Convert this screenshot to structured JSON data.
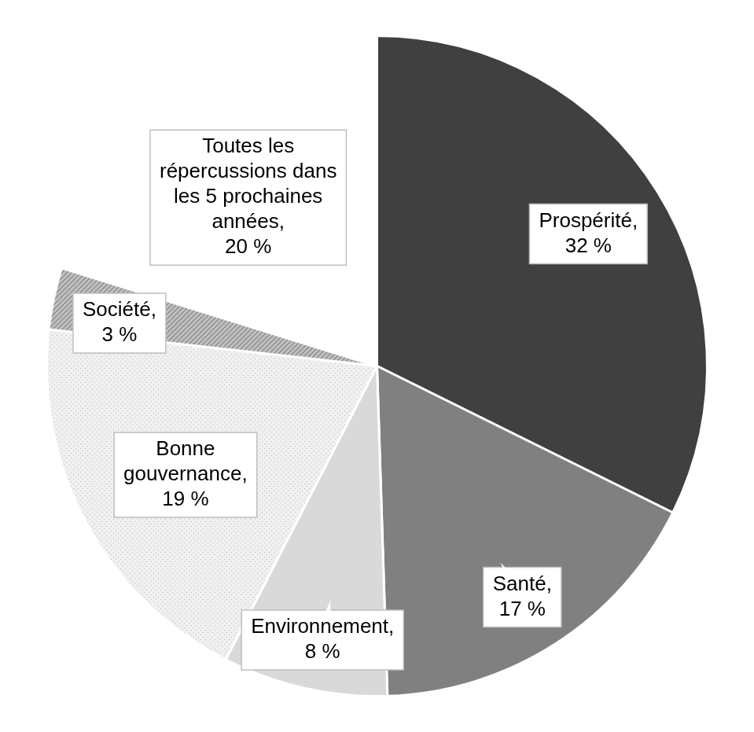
{
  "chart_data": {
    "type": "pie",
    "categories": [
      "Prospérité,",
      "Santé,",
      "Environnement,",
      "Bonne gouvernance,",
      "Société,",
      "Toutes les répercussions dans les 5 prochaines années,"
    ],
    "values": [
      32,
      17,
      8,
      19,
      3,
      20
    ],
    "value_labels": [
      "32 %",
      "17 %",
      "8 %",
      "19 %",
      "3 %",
      "20 %"
    ],
    "colors": [
      "#404040",
      "#808080",
      "#d9d9d9",
      "#f0f0f0",
      "#bdbdbd",
      "#ffffff"
    ],
    "data_labels": true
  }
}
